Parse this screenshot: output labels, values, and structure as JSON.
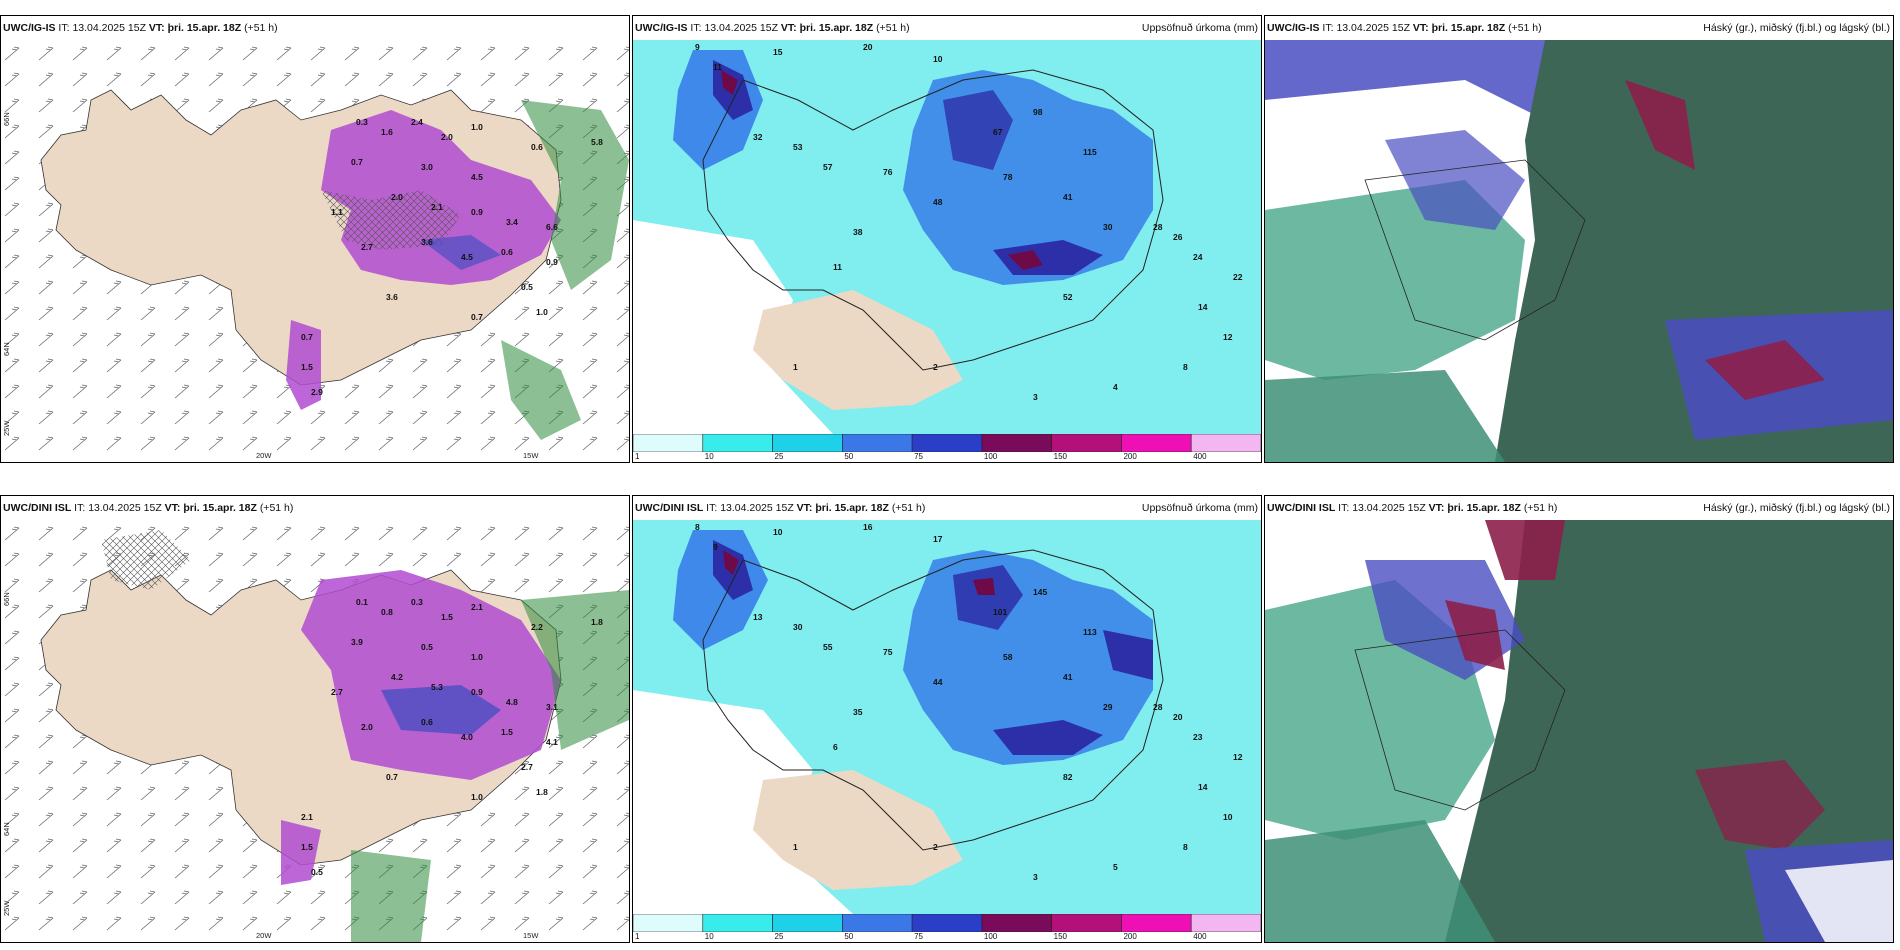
{
  "panels": {
    "p1": {
      "model": "UWC/IG-IS",
      "it_label": "IT:",
      "it": "13.04.2025 15Z",
      "vt_label": "VT:",
      "vt": "þri. 15.apr. 18Z",
      "lead": "(+51 h)",
      "right_title": ""
    },
    "p2": {
      "model": "UWC/IG-IS",
      "it_label": "IT:",
      "it": "13.04.2025 15Z",
      "vt_label": "VT:",
      "vt": "þri. 15.apr. 18Z",
      "lead": "(+51 h)",
      "right_title": "Uppsöfnuð úrkoma (mm)"
    },
    "p3": {
      "model": "UWC/IG-IS",
      "it_label": "IT:",
      "it": "13.04.2025 15Z",
      "vt_label": "VT:",
      "vt": "þri. 15.apr. 18Z",
      "lead": "(+51 h)",
      "right_title": "Háský (gr.), miðský (fj.bl.) og lágský (bl.)"
    },
    "p4": {
      "model": "UWC/DINI ISL",
      "it_label": "IT:",
      "it": "13.04.2025 15Z",
      "vt_label": "VT:",
      "vt": "þri. 15.apr. 18Z",
      "lead": "(+51 h)",
      "right_title": ""
    },
    "p5": {
      "model": "UWC/DINI ISL",
      "it_label": "IT:",
      "it": "13.04.2025 15Z",
      "vt_label": "VT:",
      "vt": "þri. 15.apr. 18Z",
      "lead": "(+51 h)",
      "right_title": "Uppsöfnuð úrkoma (mm)"
    },
    "p6": {
      "model": "UWC/DINI ISL",
      "it_label": "IT:",
      "it": "13.04.2025 15Z",
      "vt_label": "VT:",
      "vt": "þri. 15.apr. 18Z",
      "lead": "(+51 h)",
      "right_title": "Háský (gr.), miðský (fj.bl.) og lágský (bl.)"
    }
  },
  "axes": {
    "lon": [
      "20W",
      "15W"
    ],
    "lat": [
      "66N",
      "64N"
    ],
    "lat_left": "25W"
  },
  "colorbar": {
    "labels": [
      "1",
      "10",
      "25",
      "50",
      "75",
      "100",
      "150",
      "200",
      "400"
    ],
    "colors": [
      "#dffcfc",
      "#38ecec",
      "#1ed0e8",
      "#3a78e8",
      "#2a3ec8",
      "#7a0a5a",
      "#b4107a",
      "#ee10b4",
      "#f3b6f0"
    ]
  },
  "colors": {
    "land": "#ebd9c6",
    "precip_light": "#cff7f7",
    "precip_cyan": "#3fe6e9",
    "precip_blue": "#2d6fe8",
    "precip_dark": "#2d2fa8",
    "precip_maroon": "#6e0a47",
    "snow_violet": "#b24bd1",
    "rain_green": "#2f8a3c",
    "high_cloud": "#3e6656",
    "mid_cloud": "#4a4ec2",
    "low_cloud": "#8c1f4a"
  },
  "p1_labels": [
    "0.3",
    "1.6",
    "2.4",
    "2.0",
    "1.0",
    "0.7",
    "3.0",
    "4.5",
    "0.6",
    "5.8",
    "1.1",
    "2.0",
    "2.1",
    "0.9",
    "3.4",
    "6.6",
    "2.7",
    "3.6",
    "4.5",
    "0.6",
    "0.5",
    "1.0",
    "0.7",
    "3.6",
    "0.7",
    "1.5",
    "2.9",
    "0.9"
  ],
  "p4_labels": [
    "0.1",
    "0.8",
    "0.3",
    "1.5",
    "2.1",
    "3.9",
    "0.5",
    "1.0",
    "2.2",
    "1.8",
    "2.7",
    "4.2",
    "5.3",
    "0.9",
    "4.8",
    "3.1",
    "2.0",
    "0.6",
    "4.0",
    "1.5",
    "2.7",
    "1.8",
    "1.0",
    "0.7",
    "2.1",
    "1.5",
    "0.5",
    "4.1"
  ],
  "p2_values": [
    "9",
    "11",
    "15",
    "20",
    "10",
    "32",
    "53",
    "57",
    "76",
    "78",
    "48",
    "41",
    "30",
    "28",
    "26",
    "24",
    "22",
    "14",
    "12",
    "8",
    "4",
    "3",
    "2",
    "1",
    "11",
    "38",
    "52",
    "67",
    "98",
    "115"
  ],
  "p5_values": [
    "8",
    "9",
    "10",
    "16",
    "17",
    "13",
    "30",
    "55",
    "75",
    "58",
    "44",
    "41",
    "29",
    "28",
    "20",
    "23",
    "12",
    "14",
    "10",
    "8",
    "5",
    "3",
    "2",
    "1",
    "6",
    "35",
    "82",
    "101",
    "145",
    "113"
  ]
}
